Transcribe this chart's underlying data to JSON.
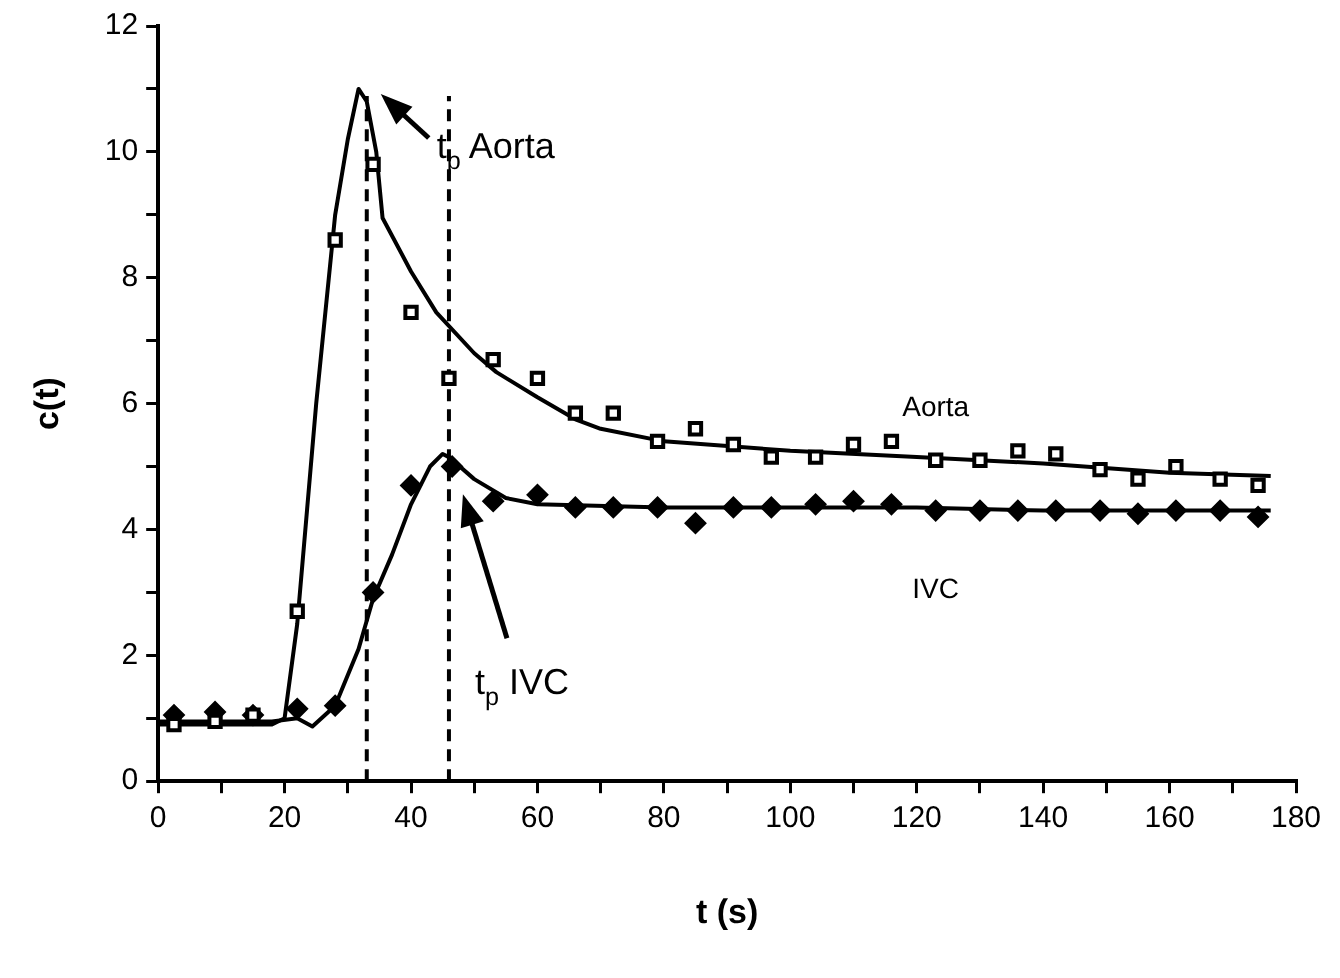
{
  "chart_data": {
    "type": "scatter",
    "xlabel": "t (s)",
    "ylabel": "c(t)",
    "xlim": [
      0,
      180
    ],
    "ylim": [
      0,
      12
    ],
    "xticks": [
      0,
      {
        "value": 10,
        "label": null
      },
      20,
      {
        "value": 30,
        "label": null
      },
      40,
      {
        "value": 50,
        "label": null
      },
      60,
      {
        "value": 70,
        "label": null
      },
      80,
      {
        "value": 90,
        "label": null
      },
      100,
      {
        "value": 110,
        "label": null
      },
      120,
      {
        "value": 130,
        "label": null
      },
      140,
      {
        "value": 150,
        "label": null
      },
      160,
      {
        "value": 170,
        "label": null
      },
      180
    ],
    "yticks": [
      0,
      {
        "value": 1,
        "label": null
      },
      2,
      {
        "value": 3,
        "label": null
      },
      4,
      {
        "value": 5,
        "label": null
      },
      6,
      {
        "value": 7,
        "label": null
      },
      8,
      {
        "value": 9,
        "label": null
      },
      10,
      {
        "value": 11,
        "label": null
      },
      12
    ],
    "grid": false,
    "legend": false,
    "series": [
      {
        "name": "Aorta",
        "type": "scatter",
        "marker": "square",
        "color": "#000000",
        "x": [
          2.5,
          9,
          15,
          22,
          28,
          34,
          40,
          46,
          53,
          60,
          66,
          72,
          79,
          85,
          91,
          97,
          104,
          110,
          116,
          123,
          130,
          136,
          142,
          149,
          155,
          161,
          168,
          174
        ],
        "values": [
          0.9,
          0.95,
          1.05,
          2.7,
          8.6,
          9.8,
          7.45,
          6.4,
          6.7,
          6.4,
          5.85,
          5.85,
          5.4,
          5.6,
          5.35,
          5.15,
          5.15,
          5.35,
          5.4,
          5.1,
          5.1,
          5.25,
          5.2,
          4.95,
          4.8,
          5.0,
          4.8,
          4.7
        ]
      },
      {
        "name": "IVC",
        "type": "scatter",
        "marker": "diamond",
        "color": "#000000",
        "x": [
          2.5,
          9,
          15,
          22,
          28,
          34,
          40,
          46.5,
          53,
          60,
          66,
          72,
          79,
          85,
          91,
          97,
          104,
          110,
          116,
          123,
          130,
          136,
          142,
          149,
          155,
          161,
          168,
          174
        ],
        "values": [
          1.05,
          1.1,
          1.05,
          1.15,
          1.2,
          3.0,
          4.7,
          5.0,
          4.45,
          4.55,
          4.35,
          4.35,
          4.35,
          4.1,
          4.35,
          4.35,
          4.4,
          4.45,
          4.4,
          4.3,
          4.3,
          4.3,
          4.3,
          4.3,
          4.25,
          4.3,
          4.3,
          4.2
        ]
      },
      {
        "type": "line",
        "marker": "none",
        "color": "#000000",
        "x": [
          0,
          18,
          20,
          22,
          25,
          28,
          30,
          31.7,
          33,
          34.5,
          35.5,
          40,
          44,
          50,
          53.5,
          60,
          66,
          70,
          80,
          100,
          120,
          140,
          160,
          176
        ],
        "values": [
          0.9,
          0.9,
          1.0,
          2.5,
          6.0,
          9.0,
          10.2,
          11.0,
          10.8,
          10.0,
          8.95,
          8.1,
          7.45,
          6.8,
          6.5,
          6.1,
          5.75,
          5.6,
          5.4,
          5.25,
          5.15,
          5.05,
          4.9,
          4.85
        ]
      },
      {
        "type": "line",
        "marker": "none",
        "color": "#000000",
        "x": [
          0,
          18,
          22,
          24.4,
          28,
          31.7,
          34,
          37,
          40,
          43,
          45,
          46,
          50,
          55,
          60,
          80,
          100,
          120,
          140,
          160,
          176
        ],
        "values": [
          0.95,
          0.95,
          1.0,
          0.87,
          1.2,
          2.1,
          2.9,
          3.6,
          4.4,
          5.0,
          5.2,
          5.15,
          4.8,
          4.5,
          4.4,
          4.35,
          4.35,
          4.35,
          4.3,
          4.3,
          4.3
        ]
      }
    ],
    "ref_lines": [
      {
        "axis": "x",
        "value": 33,
        "line_style": "dashed",
        "color": "#000000",
        "label": "t$_{p}$ Aorta"
      },
      {
        "axis": "x",
        "value": 46,
        "line_style": "dashed",
        "color": "#000000",
        "label": "t$_{p}$ IVC"
      }
    ]
  }
}
